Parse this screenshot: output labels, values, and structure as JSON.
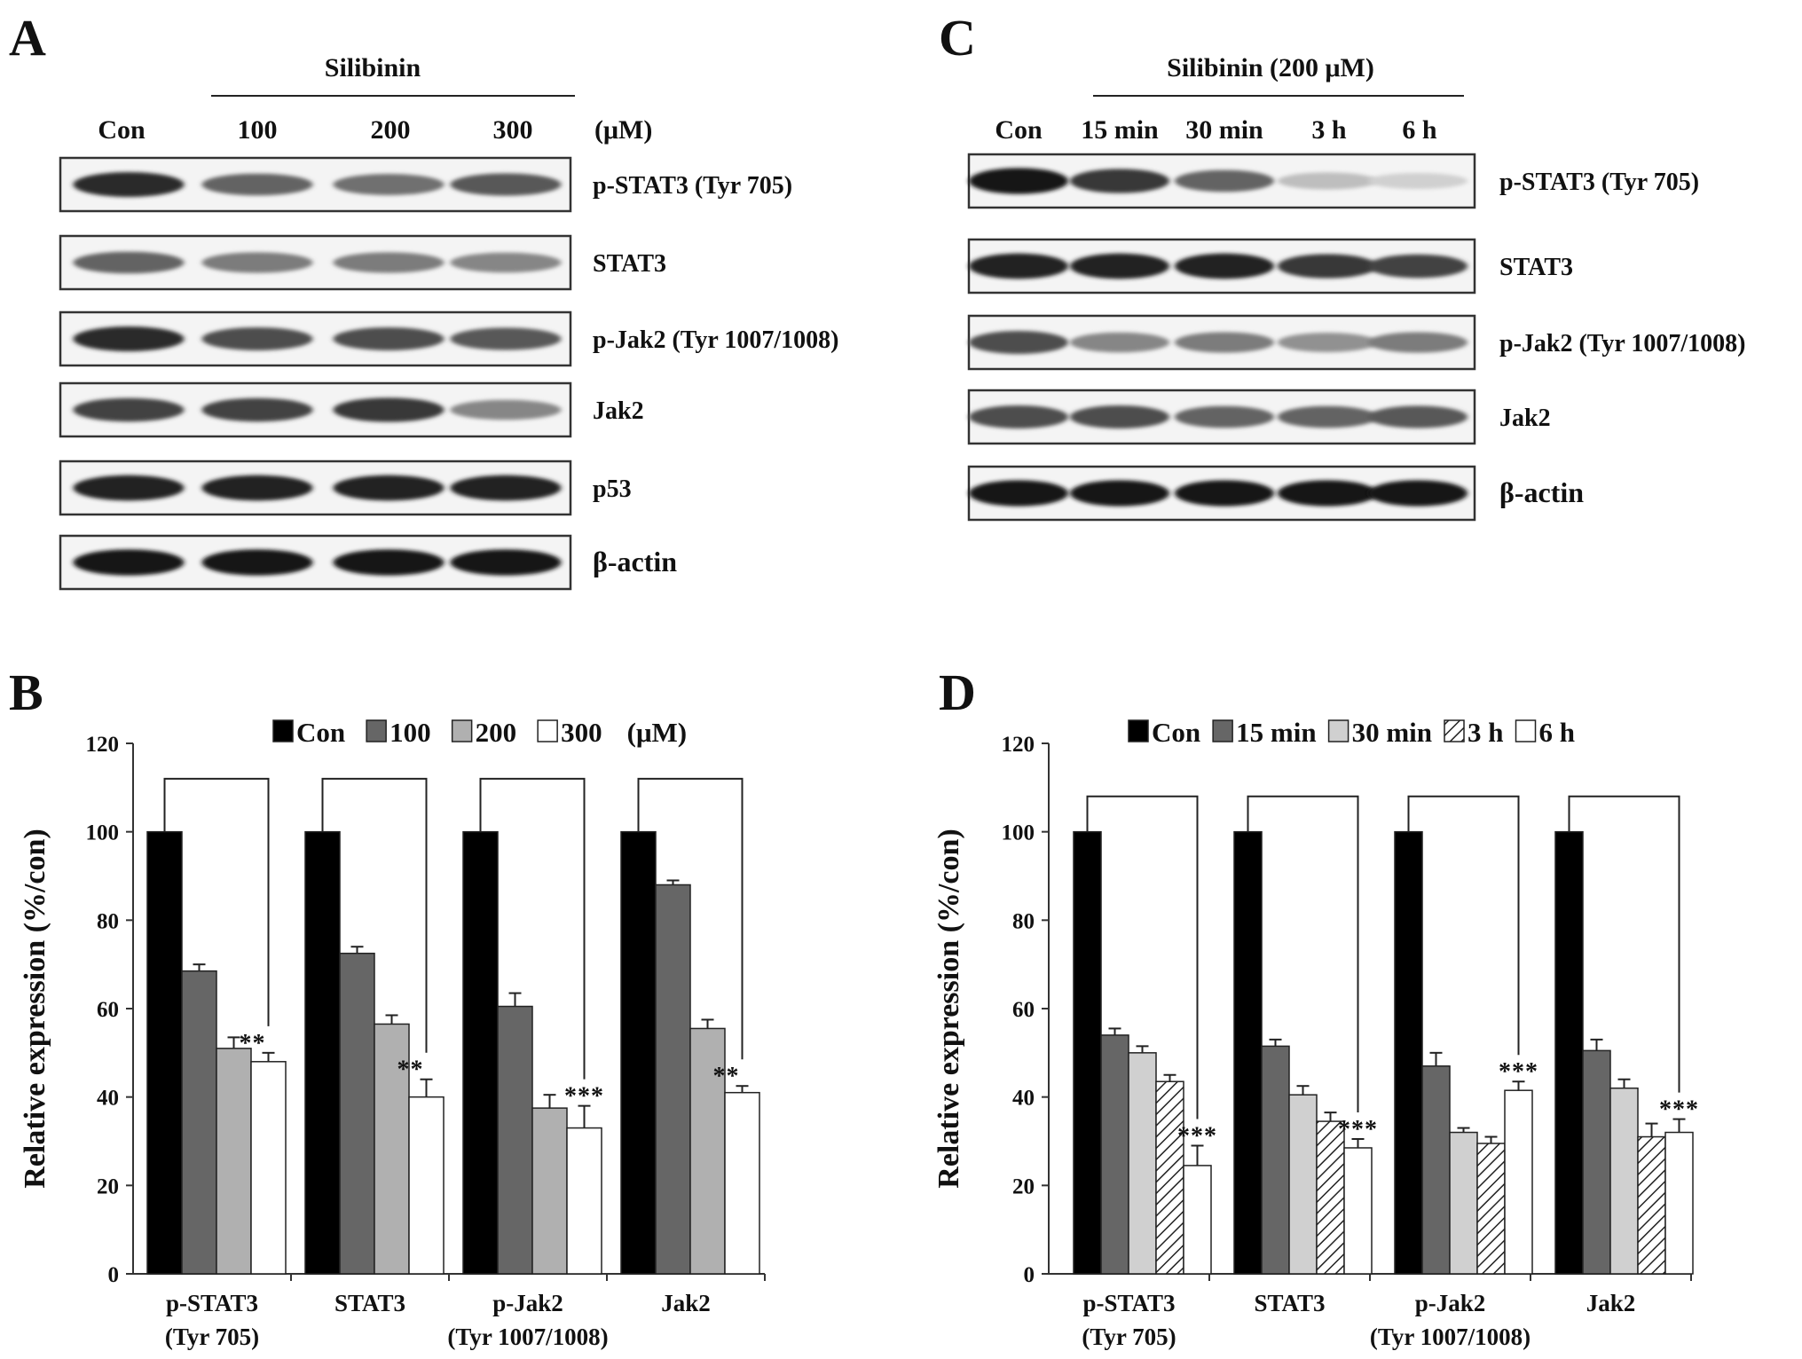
{
  "panels": {
    "A": {
      "letter": "A",
      "treatment": "Silibinin",
      "lanes": [
        "Con",
        "100",
        "200",
        "300"
      ],
      "unit": "(μM)",
      "blots": [
        {
          "label": "p-STAT3 (Tyr 705)",
          "intensity": [
            0.85,
            0.6,
            0.55,
            0.65
          ]
        },
        {
          "label": "STAT3",
          "intensity": [
            0.6,
            0.5,
            0.5,
            0.45
          ]
        },
        {
          "label": "p-Jak2 (Tyr 1007/1008)",
          "intensity": [
            0.85,
            0.7,
            0.7,
            0.65
          ]
        },
        {
          "label": "Jak2",
          "intensity": [
            0.75,
            0.75,
            0.8,
            0.45
          ]
        },
        {
          "label": "p53",
          "intensity": [
            0.9,
            0.9,
            0.9,
            0.9
          ]
        },
        {
          "label": "β-actin",
          "intensity": [
            0.95,
            0.95,
            0.95,
            0.95
          ]
        }
      ]
    },
    "C": {
      "letter": "C",
      "treatment": "Silibinin (200 μM)",
      "lanes": [
        "Con",
        "15 min",
        "30 min",
        "3 h",
        "6 h"
      ],
      "blots": [
        {
          "label": "p-STAT3 (Tyr 705)",
          "intensity": [
            0.95,
            0.8,
            0.6,
            0.2,
            0.12
          ]
        },
        {
          "label": "STAT3",
          "intensity": [
            0.9,
            0.9,
            0.9,
            0.8,
            0.75
          ]
        },
        {
          "label": "p-Jak2 (Tyr 1007/1008)",
          "intensity": [
            0.7,
            0.45,
            0.5,
            0.4,
            0.5
          ]
        },
        {
          "label": "Jak2",
          "intensity": [
            0.7,
            0.7,
            0.6,
            0.6,
            0.65
          ]
        },
        {
          "label": "β-actin",
          "intensity": [
            0.95,
            0.95,
            0.95,
            0.95,
            0.95
          ]
        }
      ]
    }
  },
  "chart_data": [
    {
      "panel": "B",
      "letter": "B",
      "type": "bar",
      "ylabel": "Relative expression (%/con)",
      "ylim": [
        0,
        120
      ],
      "yticks": [
        0,
        20,
        40,
        60,
        80,
        100,
        120
      ],
      "categories": [
        [
          "p-STAT3",
          "(Tyr 705)"
        ],
        [
          "STAT3",
          ""
        ],
        [
          "p-Jak2",
          "(Tyr 1007/1008)"
        ],
        [
          "Jak2",
          ""
        ]
      ],
      "legend_unit": "(μM)",
      "series": [
        {
          "name": "Con",
          "fill": "#000000",
          "values": [
            100,
            100,
            100,
            100
          ],
          "errors": [
            0,
            0,
            0,
            0
          ]
        },
        {
          "name": "100",
          "fill": "#666666",
          "values": [
            68.5,
            72.5,
            60.5,
            88
          ],
          "errors": [
            1.5,
            1.5,
            3,
            1
          ]
        },
        {
          "name": "200",
          "fill": "#b0b0b0",
          "values": [
            51,
            56.5,
            37.5,
            55.5
          ],
          "errors": [
            2.5,
            2,
            3,
            2
          ]
        },
        {
          "name": "300",
          "fill": "#ffffff",
          "values": [
            48,
            40,
            33,
            41
          ],
          "errors": [
            2,
            4,
            5,
            1.5
          ]
        }
      ],
      "significance": [
        {
          "category": 0,
          "label": "**"
        },
        {
          "category": 1,
          "label": "**"
        },
        {
          "category": 2,
          "label": "***"
        },
        {
          "category": 3,
          "label": "**"
        }
      ]
    },
    {
      "panel": "D",
      "letter": "D",
      "type": "bar",
      "ylabel": "Relative expression (%/con)",
      "ylim": [
        0,
        120
      ],
      "yticks": [
        0,
        20,
        40,
        60,
        80,
        100,
        120
      ],
      "categories": [
        [
          "p-STAT3",
          "(Tyr 705)"
        ],
        [
          "STAT3",
          ""
        ],
        [
          "p-Jak2",
          "(Tyr 1007/1008)"
        ],
        [
          "Jak2",
          ""
        ]
      ],
      "series": [
        {
          "name": "Con",
          "fill": "#000000",
          "values": [
            100,
            100,
            100,
            100
          ],
          "errors": [
            0,
            0,
            0,
            0
          ]
        },
        {
          "name": "15 min",
          "fill": "#666666",
          "values": [
            54,
            51.5,
            47,
            50.5
          ],
          "errors": [
            1.5,
            1.5,
            3,
            2.5
          ]
        },
        {
          "name": "30 min",
          "fill": "#d0d0d0",
          "values": [
            50,
            40.5,
            32,
            42
          ],
          "errors": [
            1.5,
            2,
            1,
            2
          ]
        },
        {
          "name": "3 h",
          "fill": "hatch",
          "values": [
            43.5,
            34.5,
            29.5,
            31
          ],
          "errors": [
            1.5,
            2,
            1.5,
            3
          ]
        },
        {
          "name": "6 h",
          "fill": "#ffffff",
          "values": [
            24.5,
            28.5,
            41.5,
            32
          ],
          "errors": [
            4.5,
            2,
            2,
            3
          ]
        }
      ],
      "significance": [
        {
          "category": 0,
          "label": "***"
        },
        {
          "category": 1,
          "label": "***"
        },
        {
          "category": 2,
          "label": "***"
        },
        {
          "category": 3,
          "label": "***"
        }
      ]
    }
  ]
}
